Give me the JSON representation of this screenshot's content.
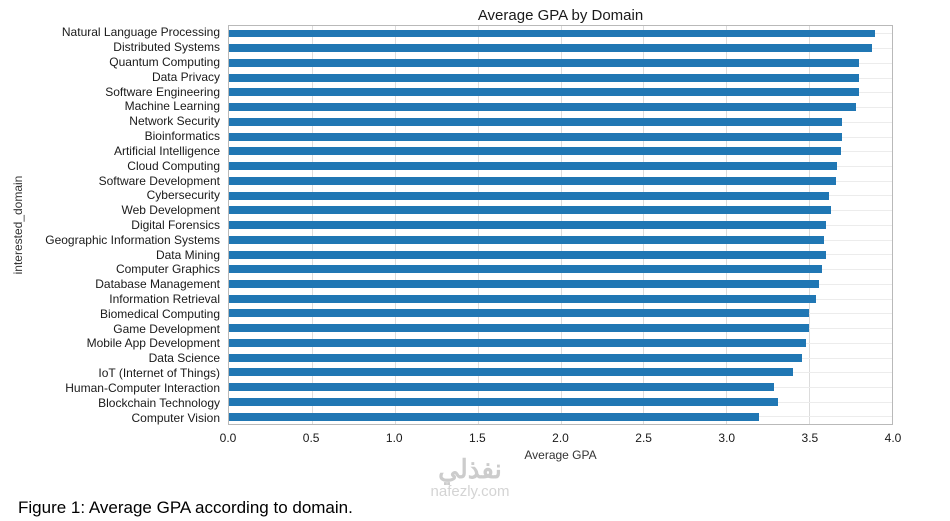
{
  "figure": {
    "caption": "Figure 1: Average GPA according to domain.",
    "watermark_line1": "نفذلي",
    "watermark_line2": "nafezly.com"
  },
  "chart_data": {
    "type": "bar",
    "orientation": "horizontal",
    "title": "Average GPA by Domain",
    "xlabel": "Average GPA",
    "ylabel": "interested_domain",
    "xlim": [
      0,
      4.0
    ],
    "xticks": [
      0.0,
      0.5,
      1.0,
      1.5,
      2.0,
      2.5,
      3.0,
      3.5,
      4.0
    ],
    "grid": true,
    "legend": false,
    "bar_color": "#2077b4",
    "categories": [
      "Natural Language Processing",
      "Distributed Systems",
      "Quantum Computing",
      "Data Privacy",
      "Software Engineering",
      "Machine Learning",
      "Network Security",
      "Bioinformatics",
      "Artificial Intelligence",
      "Cloud Computing",
      "Software Development",
      "Cybersecurity",
      "Web Development",
      "Digital Forensics",
      "Geographic Information Systems",
      "Data Mining",
      "Computer Graphics",
      "Database Management",
      "Information Retrieval",
      "Biomedical Computing",
      "Game Development",
      "Mobile App Development",
      "Data Science",
      "IoT (Internet of Things)",
      "Human-Computer Interaction",
      "Blockchain Technology",
      "Computer Vision"
    ],
    "values": [
      3.9,
      3.88,
      3.8,
      3.8,
      3.8,
      3.78,
      3.7,
      3.7,
      3.69,
      3.67,
      3.66,
      3.62,
      3.63,
      3.6,
      3.59,
      3.6,
      3.58,
      3.56,
      3.54,
      3.5,
      3.5,
      3.48,
      3.46,
      3.4,
      3.29,
      3.31,
      3.2
    ]
  }
}
